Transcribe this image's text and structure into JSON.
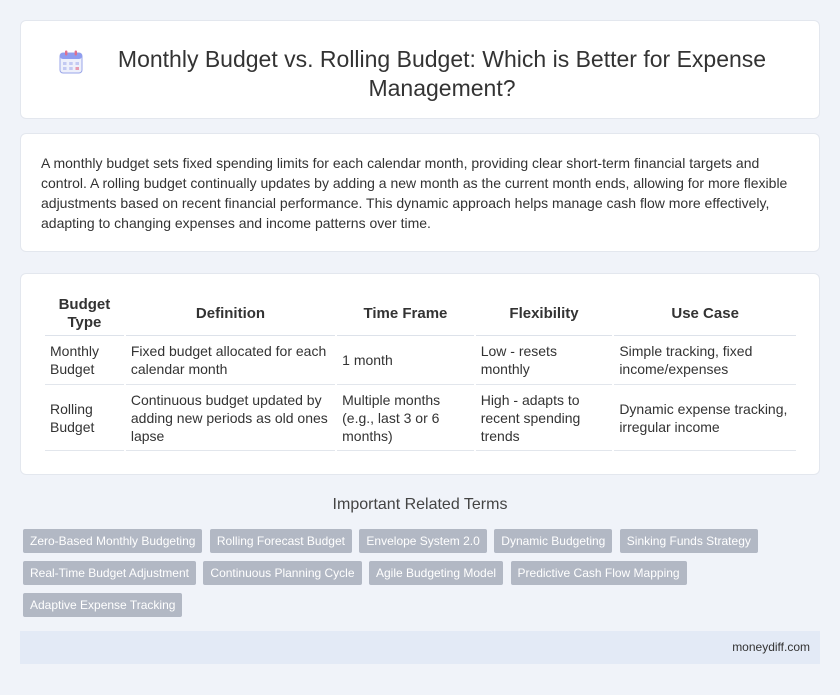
{
  "page": {
    "title": "Monthly Budget vs. Rolling Budget: Which is Better for Expense Management?",
    "title_icon": "calendar-icon"
  },
  "intro": "A monthly budget sets fixed spending limits for each calendar month, providing clear short-term financial targets and control. A rolling budget continually updates by adding a new month as the current month ends, allowing for more flexible adjustments based on recent financial performance. This dynamic approach helps manage cash flow more effectively, adapting to changing expenses and income patterns over time.",
  "table": {
    "headers": [
      "Budget Type",
      "Definition",
      "Time Frame",
      "Flexibility",
      "Use Case"
    ],
    "rows": [
      [
        "Monthly Budget",
        "Fixed budget allocated for each calendar month",
        "1 month",
        "Low - resets monthly",
        "Simple tracking, fixed income/expenses"
      ],
      [
        "Rolling Budget",
        "Continuous budget updated by adding new periods as old ones lapse",
        "Multiple months (e.g., last 3 or 6 months)",
        "High - adapts to recent spending trends",
        "Dynamic expense tracking, irregular income"
      ]
    ]
  },
  "related": {
    "title": "Important Related Terms",
    "tags": [
      "Zero-Based Monthly Budgeting",
      "Rolling Forecast Budget",
      "Envelope System 2.0",
      "Dynamic Budgeting",
      "Sinking Funds Strategy",
      "Real-Time Budget Adjustment",
      "Continuous Planning Cycle",
      "Agile Budgeting Model",
      "Predictive Cash Flow Mapping",
      "Adaptive Expense Tracking"
    ]
  },
  "footer": {
    "site": "moneydiff.com"
  },
  "colors": {
    "background": "#f0f3f9",
    "tag_bg": "#b2b8c4",
    "footer_bg": "#e3eaf6"
  }
}
